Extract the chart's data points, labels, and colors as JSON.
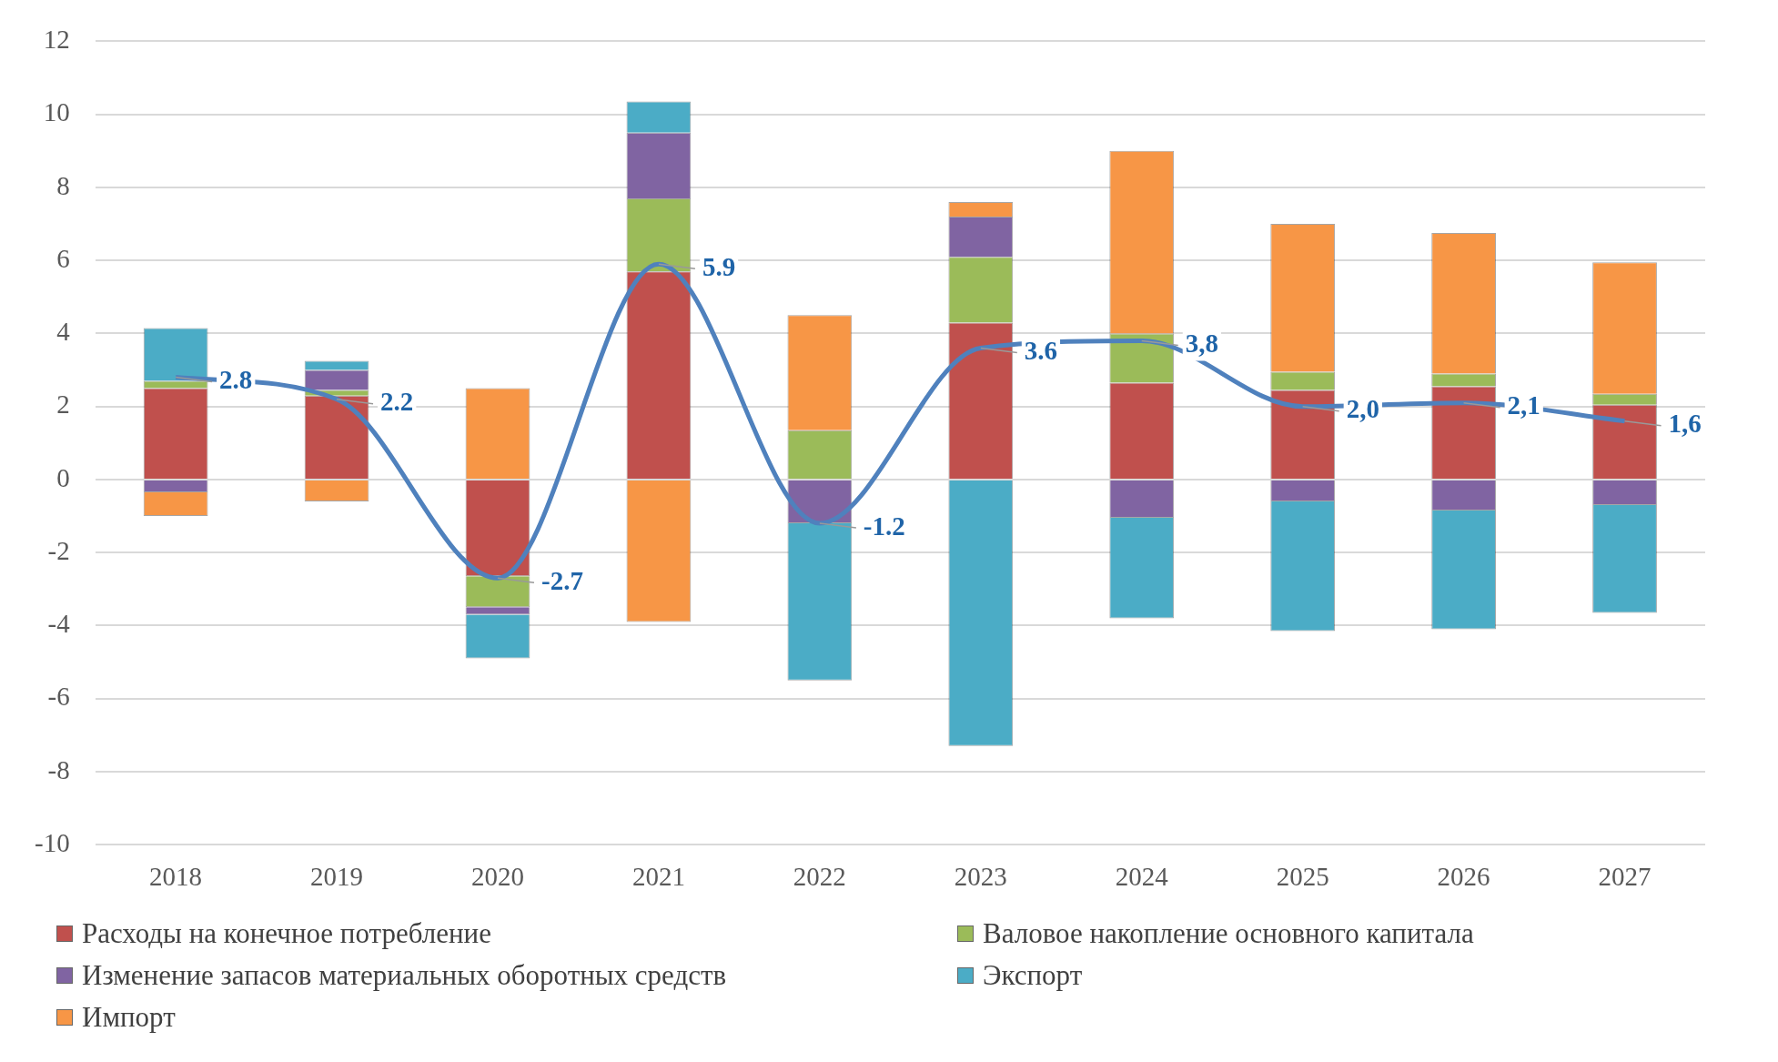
{
  "chart_data": {
    "type": "bar",
    "stacked": true,
    "categories": [
      "2018",
      "2019",
      "2020",
      "2021",
      "2022",
      "2023",
      "2024",
      "2025",
      "2026",
      "2027"
    ],
    "ylim": [
      -10,
      12
    ],
    "yticks": [
      -10,
      -8,
      -6,
      -4,
      -2,
      0,
      2,
      4,
      6,
      8,
      10,
      12
    ],
    "grid": "y",
    "legend": "bottom",
    "series": [
      {
        "name": "Расходы на конечное потребление",
        "color": "#c0504d",
        "values": [
          2.5,
          2.3,
          -2.65,
          5.7,
          0,
          4.3,
          2.65,
          2.45,
          2.55,
          2.05
        ]
      },
      {
        "name": "Валовое накопление основного капитала",
        "color": "#9bbb59",
        "values": [
          0.2,
          0.15,
          -0.85,
          2.0,
          1.35,
          1.8,
          1.35,
          0.5,
          0.35,
          0.3
        ]
      },
      {
        "name": "Изменение запасов материальных оборотных средств",
        "color": "#8064a2",
        "values": [
          -0.35,
          0.55,
          -0.2,
          1.8,
          -1.2,
          1.1,
          -1.05,
          -0.6,
          -0.85,
          -0.7
        ]
      },
      {
        "name": "Экспорт",
        "color": "#4bacc6",
        "values": [
          1.45,
          0.25,
          -1.2,
          0.85,
          -4.3,
          -7.3,
          -2.75,
          -3.55,
          -3.25,
          -2.95
        ]
      },
      {
        "name": "Импорт",
        "color": "#f79646",
        "values": [
          -0.65,
          -0.6,
          2.5,
          -3.9,
          3.15,
          0.4,
          5.0,
          4.05,
          3.85,
          3.6
        ]
      },
      {
        "type": "line",
        "color": "#4f81bd",
        "values": [
          2.8,
          2.2,
          -2.7,
          5.9,
          -1.2,
          3.6,
          3.8,
          2.0,
          2.1,
          1.6
        ],
        "value_labels": [
          "2.8",
          "2.2",
          "-2.7",
          "5.9",
          "-1.2",
          "3.6",
          "3,8",
          "2,0",
          "2,1",
          "1,6"
        ]
      }
    ]
  }
}
